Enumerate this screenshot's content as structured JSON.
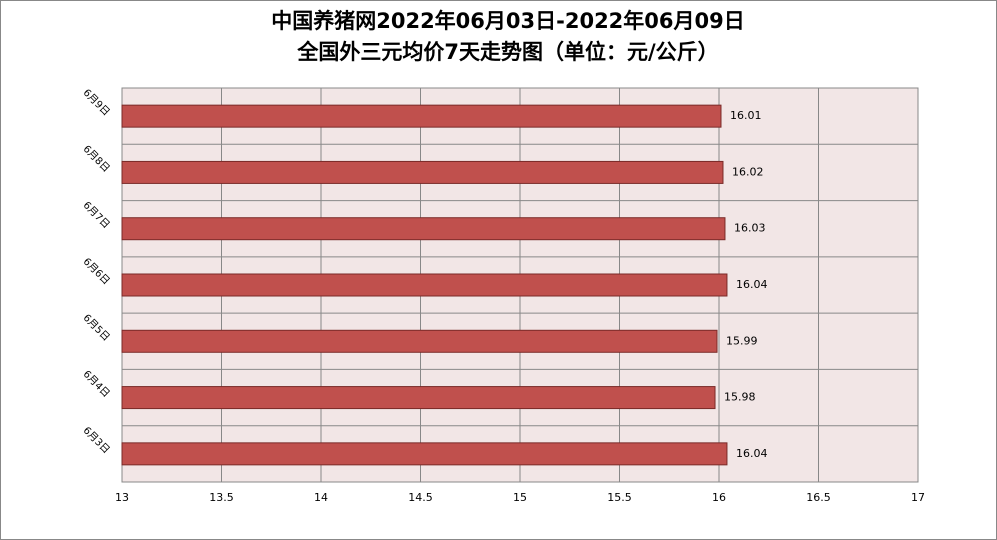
{
  "chart_data": {
    "type": "barh",
    "title": "中国养猪网2022年06月03日-2022年06月09日",
    "subtitle": "全国外三元均价7天走势图（单位：元/公斤）",
    "categories": [
      "6月3日",
      "6月4日",
      "6月5日",
      "6月6日",
      "6月7日",
      "6月8日",
      "6月9日"
    ],
    "values": [
      16.04,
      15.98,
      15.99,
      16.04,
      16.03,
      16.02,
      16.01
    ],
    "color": "#c0504d",
    "xlim": [
      13,
      17
    ],
    "xticks": [
      13,
      13.5,
      14,
      14.5,
      15,
      15.5,
      16,
      16.5,
      17
    ],
    "grid": true
  }
}
